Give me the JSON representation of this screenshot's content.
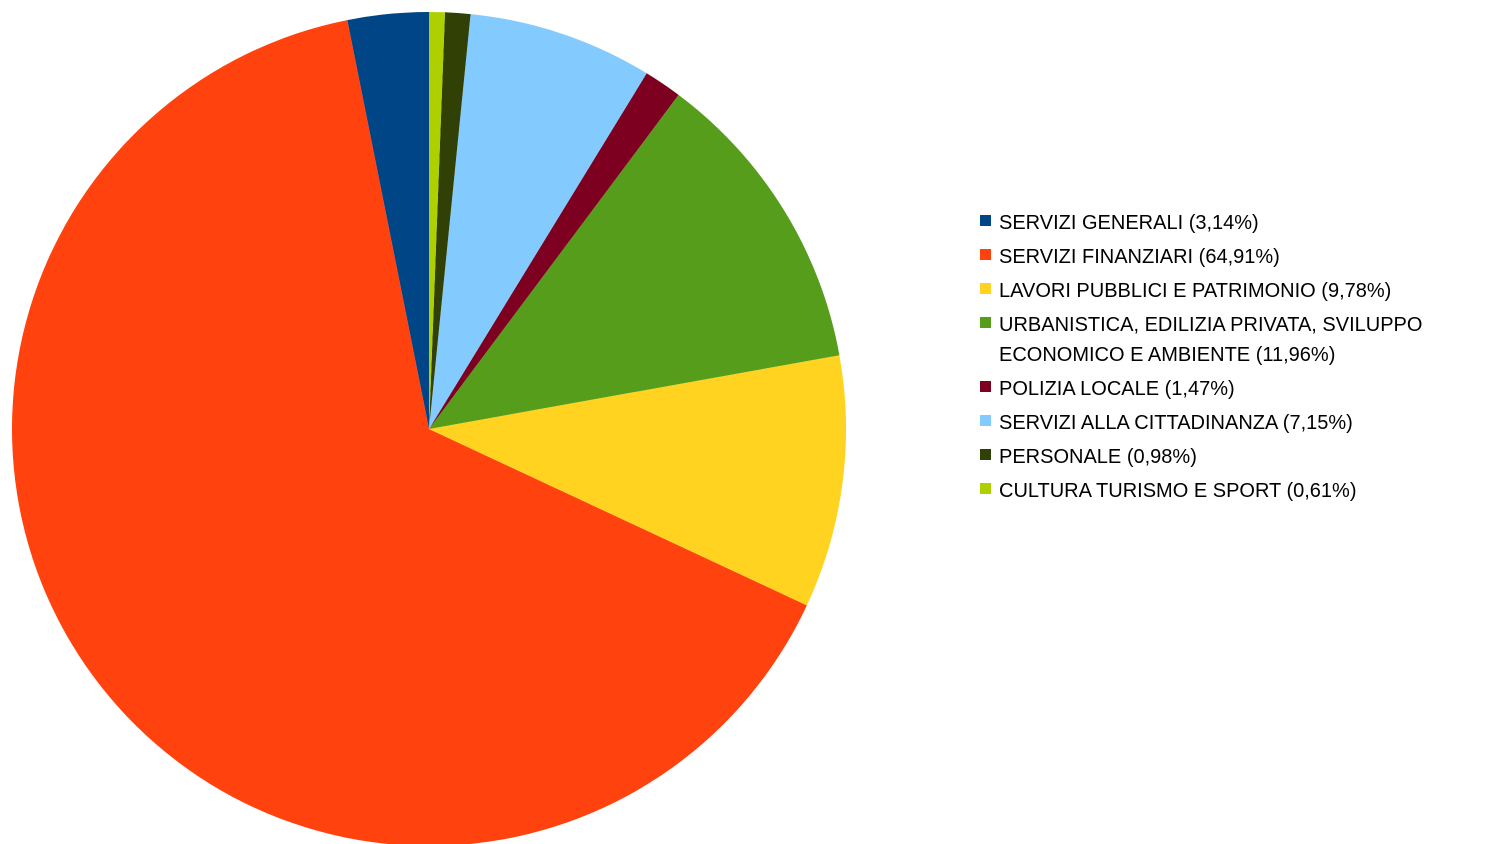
{
  "chart_data": {
    "type": "pie",
    "title": "",
    "start_angle_deg": 90,
    "direction": "counterclockwise",
    "legend_position": "right",
    "slices": [
      {
        "label": "SERVIZI GENERALI (3,14%)",
        "value": 3.14,
        "color": "#004586"
      },
      {
        "label": "SERVIZI FINANZIARI (64,91%)",
        "value": 64.91,
        "color": "#ff420e"
      },
      {
        "label": "LAVORI PUBBLICI E PATRIMONIO (9,78%)",
        "value": 9.78,
        "color": "#ffd320"
      },
      {
        "label": "URBANISTICA, EDILIZIA PRIVATA, SVILUPPO\nECONOMICO E AMBIENTE (11,96%)",
        "value": 11.96,
        "color": "#579d1c"
      },
      {
        "label": "POLIZIA LOCALE (1,47%)",
        "value": 1.47,
        "color": "#7e0021"
      },
      {
        "label": "SERVIZI ALLA CITTADINANZA (7,15%)",
        "value": 7.15,
        "color": "#83caff"
      },
      {
        "label": "PERSONALE (0,98%)",
        "value": 0.98,
        "color": "#314004"
      },
      {
        "label": "CULTURA TURISMO E SPORT (0,61%)",
        "value": 0.61,
        "color": "#aecf00"
      }
    ]
  }
}
